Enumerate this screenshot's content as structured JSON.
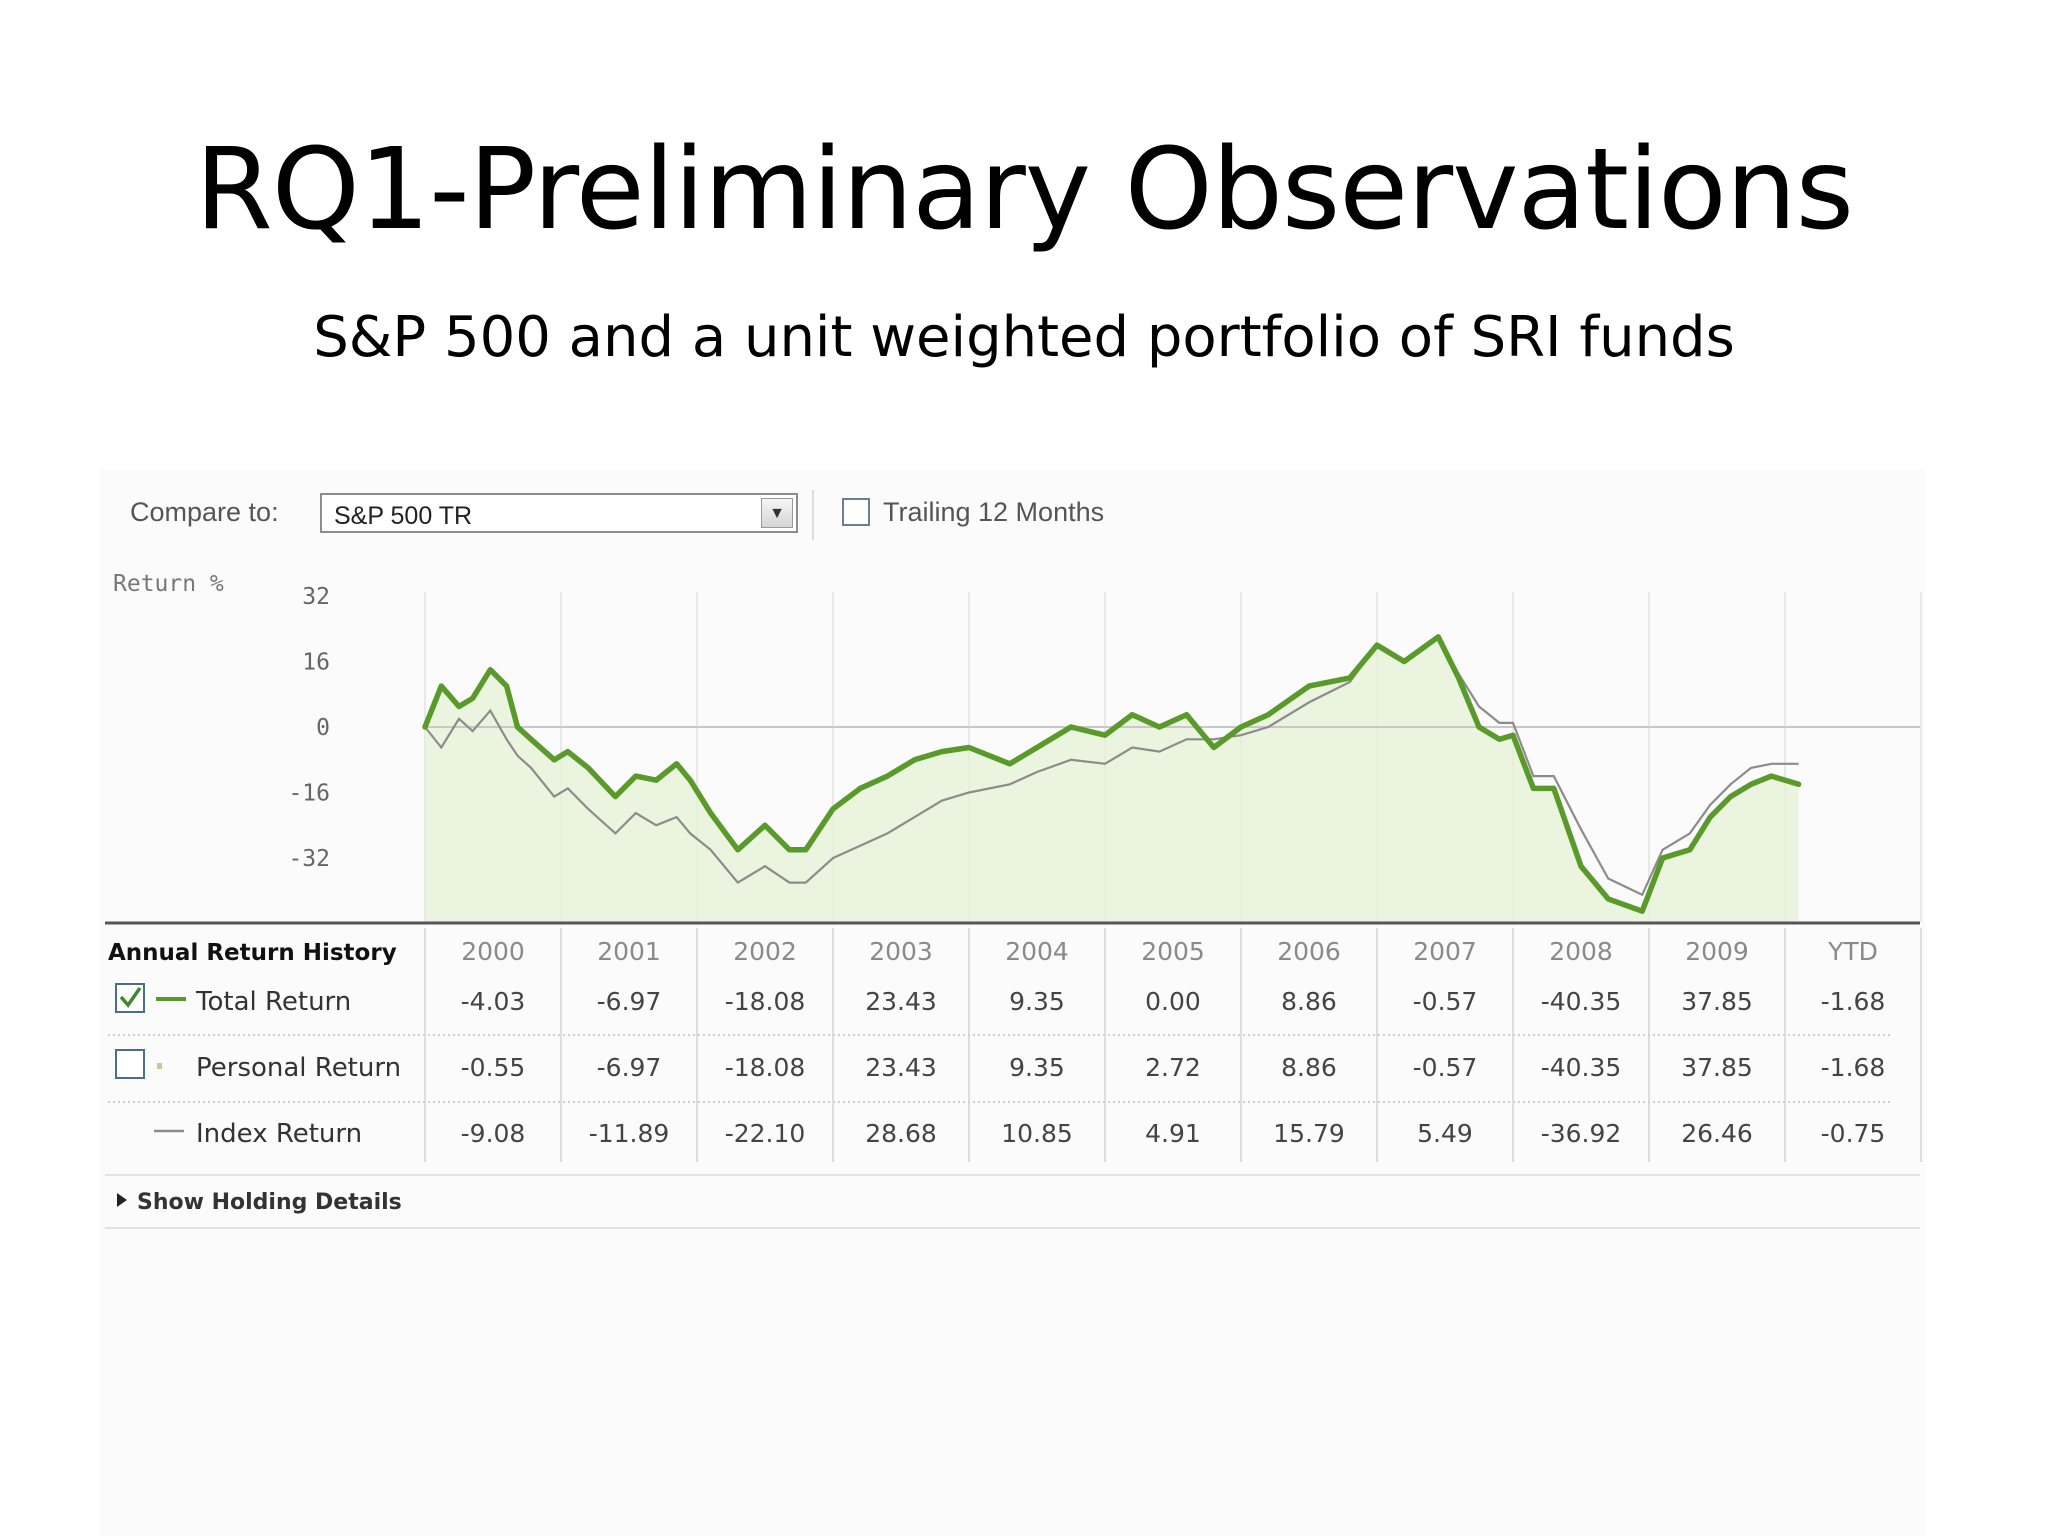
{
  "slide": {
    "title": "RQ1-Preliminary Observations",
    "subtitle": "S&P 500 and a unit weighted portfolio of SRI funds"
  },
  "controls": {
    "compare_label": "Compare to:",
    "compare_value": "S&P 500 TR",
    "trailing_label": "Trailing 12 Months",
    "trailing_checked": false
  },
  "colors": {
    "fund_line": "#5a9a2a",
    "index_line": "#8c8c8c",
    "fill": "#e6f2d4",
    "grid": "#e8e8e8"
  },
  "chart_data": {
    "type": "line",
    "ylabel": "Return %",
    "y_ticks": [
      32,
      16,
      0,
      -16,
      -32
    ],
    "ylim": [
      -47,
      35
    ],
    "x_categories": [
      "2000",
      "2001",
      "2002",
      "2003",
      "2004",
      "2005",
      "2006",
      "2007",
      "2008",
      "2009",
      "YTD"
    ],
    "xlim": [
      0,
      10.3
    ],
    "series": [
      {
        "name": "Total Return",
        "x": [
          0,
          0.12,
          0.25,
          0.35,
          0.48,
          0.6,
          0.68,
          0.78,
          0.95,
          1.05,
          1.2,
          1.4,
          1.55,
          1.7,
          1.85,
          1.95,
          2.1,
          2.3,
          2.5,
          2.68,
          2.8,
          3.0,
          3.2,
          3.4,
          3.6,
          3.8,
          4.0,
          4.3,
          4.5,
          4.75,
          5.0,
          5.2,
          5.4,
          5.6,
          5.8,
          6.0,
          6.2,
          6.5,
          6.8,
          7.0,
          7.2,
          7.45,
          7.6,
          7.75,
          7.9,
          8.0,
          8.15,
          8.3,
          8.5,
          8.7,
          8.95,
          9.1,
          9.3,
          9.45,
          9.6,
          9.75,
          9.9,
          10.1
        ],
        "y": [
          0,
          10,
          5,
          7,
          14,
          10,
          0,
          -3,
          -8,
          -6,
          -10,
          -17,
          -12,
          -13,
          -9,
          -13,
          -21,
          -30,
          -24,
          -30,
          -30,
          -20,
          -15,
          -12,
          -8,
          -6,
          -5,
          -9,
          -5,
          0,
          -2,
          3,
          0,
          3,
          -5,
          0,
          3,
          10,
          12,
          20,
          16,
          22,
          12,
          0,
          -3,
          -2,
          -15,
          -15,
          -34,
          -42,
          -45,
          -32,
          -30,
          -22,
          -17,
          -14,
          -12,
          -14
        ]
      },
      {
        "name": "Index Return",
        "x": [
          0,
          0.12,
          0.25,
          0.35,
          0.48,
          0.6,
          0.68,
          0.78,
          0.95,
          1.05,
          1.2,
          1.4,
          1.55,
          1.7,
          1.85,
          1.95,
          2.1,
          2.3,
          2.5,
          2.68,
          2.8,
          3.0,
          3.2,
          3.4,
          3.6,
          3.8,
          4.0,
          4.3,
          4.5,
          4.75,
          5.0,
          5.2,
          5.4,
          5.6,
          5.8,
          6.0,
          6.2,
          6.5,
          6.8,
          7.0,
          7.2,
          7.45,
          7.6,
          7.75,
          7.9,
          8.0,
          8.15,
          8.3,
          8.5,
          8.7,
          8.95,
          9.1,
          9.3,
          9.45,
          9.6,
          9.75,
          9.9,
          10.1
        ],
        "y": [
          0,
          -5,
          2,
          -1,
          4,
          -3,
          -7,
          -10,
          -17,
          -15,
          -20,
          -26,
          -21,
          -24,
          -22,
          -26,
          -30,
          -38,
          -34,
          -38,
          -38,
          -32,
          -29,
          -26,
          -22,
          -18,
          -16,
          -14,
          -11,
          -8,
          -9,
          -5,
          -6,
          -3,
          -3,
          -2,
          0,
          6,
          11,
          20,
          16,
          22,
          13,
          5,
          1,
          1,
          -12,
          -12,
          -25,
          -37,
          -41,
          -30,
          -26,
          -19,
          -14,
          -10,
          -9,
          -9
        ]
      }
    ]
  },
  "table": {
    "header": "Annual Return History",
    "years": [
      "2000",
      "2001",
      "2002",
      "2003",
      "2004",
      "2005",
      "2006",
      "2007",
      "2008",
      "2009",
      "YTD"
    ],
    "rows": [
      {
        "label": "Total Return",
        "checked": true,
        "values": [
          "-4.03",
          "-6.97",
          "-18.08",
          "23.43",
          "9.35",
          "0.00",
          "8.86",
          "-0.57",
          "-40.35",
          "37.85",
          "-1.68"
        ]
      },
      {
        "label": "Personal Return",
        "checked": false,
        "values": [
          "-0.55",
          "-6.97",
          "-18.08",
          "23.43",
          "9.35",
          "2.72",
          "8.86",
          "-0.57",
          "-40.35",
          "37.85",
          "-1.68"
        ]
      },
      {
        "label": "Index Return",
        "values": [
          "-9.08",
          "-11.89",
          "-22.10",
          "28.68",
          "10.85",
          "4.91",
          "15.79",
          "5.49",
          "-36.92",
          "26.46",
          "-0.75"
        ]
      }
    ],
    "show_holding": "Show Holding Details"
  }
}
